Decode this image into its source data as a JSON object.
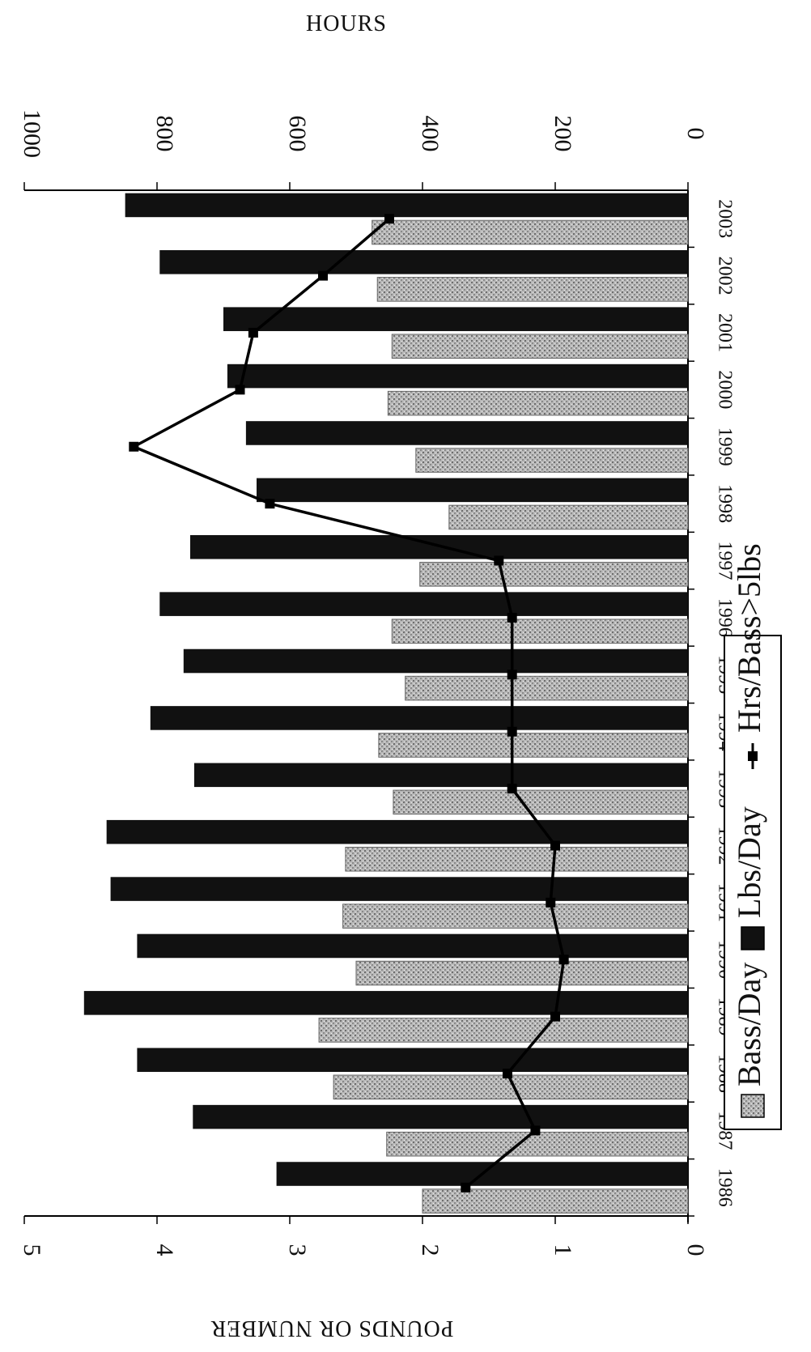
{
  "chart_data": {
    "type": "bar",
    "orientation": "rotated-90-clockwise",
    "categories": [
      "1986",
      "1987",
      "1988",
      "1989",
      "1990",
      "1991",
      "1992",
      "1993",
      "1994",
      "1995",
      "1996",
      "1997",
      "1998",
      "1999",
      "2000",
      "2001",
      "2002",
      "2003"
    ],
    "series": [
      {
        "name": "Bass/Day",
        "type": "bar",
        "axis": "pounds",
        "color": "#a7a7a7",
        "values": [
          2.0,
          2.27,
          2.67,
          2.78,
          2.5,
          2.6,
          2.58,
          2.22,
          2.33,
          2.13,
          2.23,
          2.02,
          1.8,
          2.05,
          2.26,
          2.23,
          2.34,
          2.38
        ]
      },
      {
        "name": "Lbs/Day",
        "type": "bar",
        "axis": "pounds",
        "color": "#111111",
        "values": [
          3.1,
          3.73,
          4.15,
          4.55,
          4.15,
          4.35,
          4.38,
          3.72,
          4.05,
          3.8,
          3.98,
          3.75,
          3.25,
          3.33,
          3.47,
          3.5,
          3.98,
          4.24
        ]
      },
      {
        "name": "Hrs/Bass>5lbs",
        "type": "line",
        "axis": "hours",
        "color": "#000000",
        "values": [
          335,
          230,
          272,
          200,
          187,
          207,
          200,
          265,
          265,
          265,
          265,
          285,
          630,
          835,
          675,
          655,
          550,
          450
        ]
      }
    ],
    "y_left": {
      "label": "POUNDS OR NUMBER",
      "ylim": [
        0,
        5
      ],
      "ticks": [
        "0",
        "1",
        "2",
        "3",
        "4",
        "5"
      ]
    },
    "y_right": {
      "label": "HOURS",
      "ylim": [
        0,
        1000
      ],
      "ticks": [
        "0",
        "200",
        "400",
        "600",
        "800",
        "1000"
      ]
    },
    "legend": {
      "placement": "bottom",
      "entries": [
        "Bass/Day",
        "Lbs/Day",
        "Hrs/Bass>5lbs"
      ]
    },
    "grid": false
  }
}
